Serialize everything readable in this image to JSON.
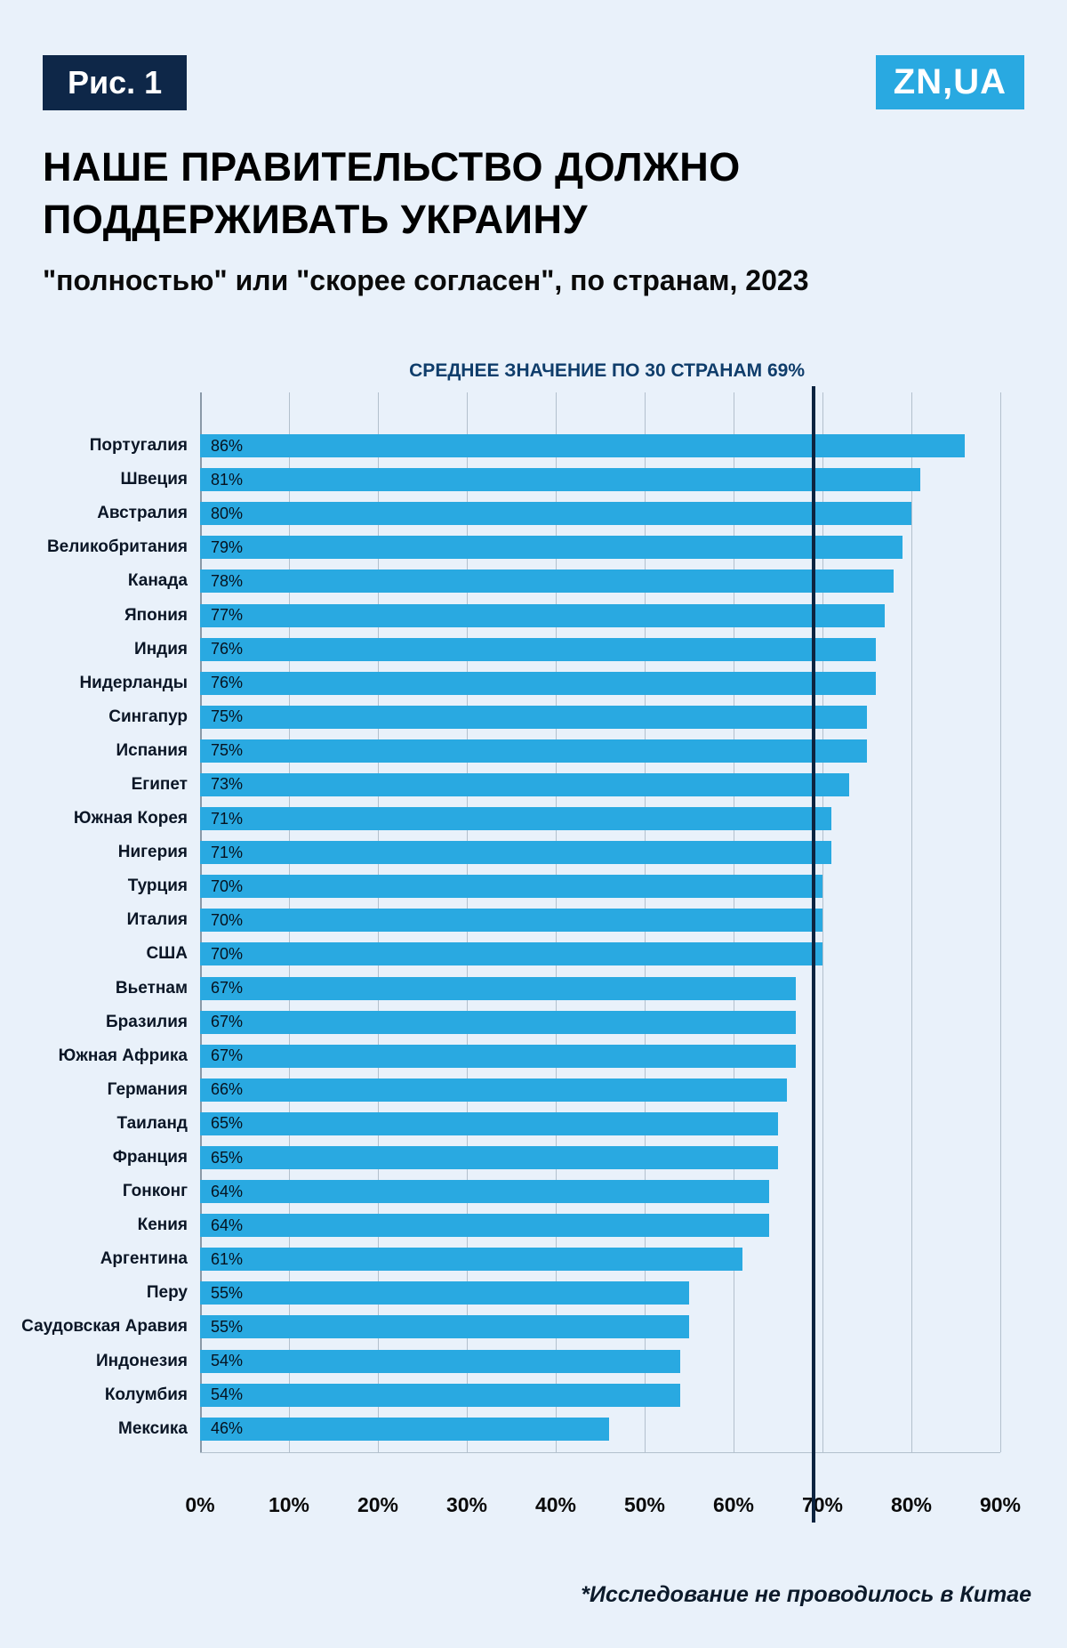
{
  "page": {
    "figure_label": "Рис. 1",
    "logo_text": "ZN,UA",
    "title": "НАШЕ ПРАВИТЕЛЬСТВО ДОЛЖНО ПОДДЕРЖИВАТЬ УКРАИНУ",
    "subtitle": "\"полностью\" или \"скорее согласен\", по странам, 2023",
    "footnote": "*Исследование не проводилось в Китае"
  },
  "chart_data": {
    "type": "bar",
    "orientation": "horizontal",
    "title": "НАШЕ ПРАВИТЕЛЬСТВО ДОЛЖНО ПОДДЕРЖИВАТЬ УКРАИНУ",
    "subtitle": "\"полностью\" или \"скорее согласен\", по странам, 2023",
    "annotation": "СРЕДНЕЕ ЗНАЧЕНИЕ ПО 30 СТРАНАМ 69%",
    "average_value": 69,
    "categories": [
      "Португалия",
      "Швеция",
      "Австралия",
      "Великобритания",
      "Канада",
      "Япония",
      "Индия",
      "Нидерланды",
      "Сингапур",
      "Испания",
      "Египет",
      "Южная Корея",
      "Нигерия",
      "Турция",
      "Италия",
      "США",
      "Вьетнам",
      "Бразилия",
      "Южная Африка",
      "Германия",
      "Таиланд",
      "Франция",
      "Гонконг",
      "Кения",
      "Аргентина",
      "Перу",
      "Саудовская Аравия",
      "Индонезия",
      "Колумбия",
      "Мексика"
    ],
    "values": [
      86,
      81,
      80,
      79,
      78,
      77,
      76,
      76,
      75,
      75,
      73,
      71,
      71,
      70,
      70,
      70,
      67,
      67,
      67,
      66,
      65,
      65,
      64,
      64,
      61,
      55,
      55,
      54,
      54,
      46
    ],
    "value_suffix": "%",
    "xlim": [
      0,
      90
    ],
    "x_ticks": [
      "0%",
      "10%",
      "20%",
      "30%",
      "40%",
      "50%",
      "60%",
      "70%",
      "80%",
      "90%"
    ],
    "grid": true,
    "legend": "none",
    "bar_color": "#29a9e1",
    "average_line_color": "#0d2440",
    "accent_navy": "#0e2748",
    "background_color": "#e9f1fa"
  }
}
